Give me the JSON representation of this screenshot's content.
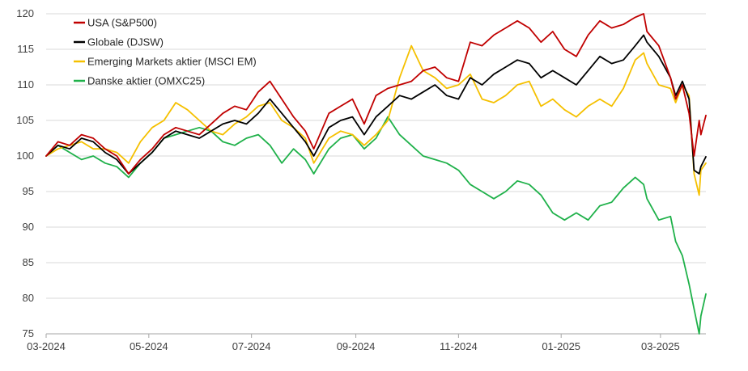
{
  "chart_data": {
    "type": "line",
    "title": "",
    "xlabel": "",
    "ylabel": "",
    "ylim": [
      75,
      120
    ],
    "yticks": [
      75,
      80,
      85,
      90,
      95,
      100,
      105,
      110,
      115,
      120
    ],
    "xticks": [
      {
        "label": "03-2024",
        "value": "2024-03-01"
      },
      {
        "label": "05-2024",
        "value": "2024-05-01"
      },
      {
        "label": "07-2024",
        "value": "2024-07-01"
      },
      {
        "label": "09-2024",
        "value": "2024-09-01"
      },
      {
        "label": "11-2024",
        "value": "2024-11-01"
      },
      {
        "label": "01-2025",
        "value": "2025-01-01"
      },
      {
        "label": "03-2025",
        "value": "2025-03-01"
      }
    ],
    "xrange": [
      "2024-03-01",
      "2025-03-28"
    ],
    "grid": "horizontal",
    "legend": "top-left",
    "series": [
      {
        "name": "USA (S&P500)",
        "color": "#c00000",
        "points": [
          [
            "2024-03-01",
            100.0
          ],
          [
            "2024-03-08",
            102.0
          ],
          [
            "2024-03-15",
            101.5
          ],
          [
            "2024-03-22",
            103.0
          ],
          [
            "2024-03-29",
            102.5
          ],
          [
            "2024-04-05",
            101.0
          ],
          [
            "2024-04-12",
            100.0
          ],
          [
            "2024-04-19",
            97.5
          ],
          [
            "2024-04-26",
            99.5
          ],
          [
            "2024-05-03",
            101.0
          ],
          [
            "2024-05-10",
            103.0
          ],
          [
            "2024-05-17",
            104.0
          ],
          [
            "2024-05-24",
            103.5
          ],
          [
            "2024-05-31",
            103.0
          ],
          [
            "2024-06-07",
            104.5
          ],
          [
            "2024-06-14",
            106.0
          ],
          [
            "2024-06-21",
            107.0
          ],
          [
            "2024-06-28",
            106.5
          ],
          [
            "2024-07-05",
            109.0
          ],
          [
            "2024-07-12",
            110.5
          ],
          [
            "2024-07-19",
            108.0
          ],
          [
            "2024-07-26",
            105.5
          ],
          [
            "2024-08-02",
            103.5
          ],
          [
            "2024-08-07",
            101.0
          ],
          [
            "2024-08-16",
            106.0
          ],
          [
            "2024-08-23",
            107.0
          ],
          [
            "2024-08-30",
            108.0
          ],
          [
            "2024-09-06",
            104.5
          ],
          [
            "2024-09-13",
            108.5
          ],
          [
            "2024-09-20",
            109.5
          ],
          [
            "2024-09-27",
            110.0
          ],
          [
            "2024-10-04",
            110.5
          ],
          [
            "2024-10-11",
            112.0
          ],
          [
            "2024-10-18",
            112.5
          ],
          [
            "2024-10-25",
            111.0
          ],
          [
            "2024-11-01",
            110.5
          ],
          [
            "2024-11-08",
            116.0
          ],
          [
            "2024-11-15",
            115.5
          ],
          [
            "2024-11-22",
            117.0
          ],
          [
            "2024-11-29",
            118.0
          ],
          [
            "2024-12-06",
            119.0
          ],
          [
            "2024-12-13",
            118.0
          ],
          [
            "2024-12-20",
            116.0
          ],
          [
            "2024-12-27",
            117.5
          ],
          [
            "2025-01-03",
            115.0
          ],
          [
            "2025-01-10",
            114.0
          ],
          [
            "2025-01-17",
            117.0
          ],
          [
            "2025-01-24",
            119.0
          ],
          [
            "2025-01-31",
            118.0
          ],
          [
            "2025-02-07",
            118.5
          ],
          [
            "2025-02-14",
            119.5
          ],
          [
            "2025-02-19",
            120.0
          ],
          [
            "2025-02-21",
            117.5
          ],
          [
            "2025-02-28",
            115.5
          ],
          [
            "2025-03-07",
            111.0
          ],
          [
            "2025-03-10",
            108.0
          ],
          [
            "2025-03-14",
            110.0
          ],
          [
            "2025-03-18",
            106.0
          ],
          [
            "2025-03-21",
            100.0
          ],
          [
            "2025-03-24",
            105.0
          ],
          [
            "2025-03-25",
            103.0
          ],
          [
            "2025-03-28",
            105.7
          ]
        ]
      },
      {
        "name": "Globale (DJSW)",
        "color": "#000000",
        "points": [
          [
            "2024-03-01",
            100.0
          ],
          [
            "2024-03-08",
            101.5
          ],
          [
            "2024-03-15",
            101.0
          ],
          [
            "2024-03-22",
            102.5
          ],
          [
            "2024-03-29",
            102.0
          ],
          [
            "2024-04-05",
            100.5
          ],
          [
            "2024-04-12",
            99.5
          ],
          [
            "2024-04-19",
            97.5
          ],
          [
            "2024-04-26",
            99.0
          ],
          [
            "2024-05-03",
            100.5
          ],
          [
            "2024-05-10",
            102.5
          ],
          [
            "2024-05-17",
            103.5
          ],
          [
            "2024-05-24",
            103.0
          ],
          [
            "2024-05-31",
            102.5
          ],
          [
            "2024-06-07",
            103.5
          ],
          [
            "2024-06-14",
            104.5
          ],
          [
            "2024-06-21",
            105.0
          ],
          [
            "2024-06-28",
            104.5
          ],
          [
            "2024-07-05",
            106.0
          ],
          [
            "2024-07-12",
            108.0
          ],
          [
            "2024-07-19",
            106.0
          ],
          [
            "2024-07-26",
            104.0
          ],
          [
            "2024-08-02",
            102.0
          ],
          [
            "2024-08-07",
            100.0
          ],
          [
            "2024-08-16",
            104.0
          ],
          [
            "2024-08-23",
            105.0
          ],
          [
            "2024-08-30",
            105.5
          ],
          [
            "2024-09-06",
            103.0
          ],
          [
            "2024-09-13",
            105.5
          ],
          [
            "2024-09-20",
            107.0
          ],
          [
            "2024-09-27",
            108.5
          ],
          [
            "2024-10-04",
            108.0
          ],
          [
            "2024-10-11",
            109.0
          ],
          [
            "2024-10-18",
            110.0
          ],
          [
            "2024-10-25",
            108.5
          ],
          [
            "2024-11-01",
            108.0
          ],
          [
            "2024-11-08",
            111.0
          ],
          [
            "2024-11-15",
            110.0
          ],
          [
            "2024-11-22",
            111.5
          ],
          [
            "2024-11-29",
            112.5
          ],
          [
            "2024-12-06",
            113.5
          ],
          [
            "2024-12-13",
            113.0
          ],
          [
            "2024-12-20",
            111.0
          ],
          [
            "2024-12-27",
            112.0
          ],
          [
            "2025-01-03",
            111.0
          ],
          [
            "2025-01-10",
            110.0
          ],
          [
            "2025-01-17",
            112.0
          ],
          [
            "2025-01-24",
            114.0
          ],
          [
            "2025-01-31",
            113.0
          ],
          [
            "2025-02-07",
            113.5
          ],
          [
            "2025-02-14",
            115.5
          ],
          [
            "2025-02-19",
            117.0
          ],
          [
            "2025-02-21",
            116.0
          ],
          [
            "2025-02-28",
            114.0
          ],
          [
            "2025-03-07",
            111.0
          ],
          [
            "2025-03-10",
            108.5
          ],
          [
            "2025-03-14",
            110.5
          ],
          [
            "2025-03-18",
            108.0
          ],
          [
            "2025-03-21",
            98.0
          ],
          [
            "2025-03-24",
            97.5
          ],
          [
            "2025-03-25",
            98.5
          ],
          [
            "2025-03-28",
            99.9
          ]
        ]
      },
      {
        "name": "Emerging Markets aktier (MSCI EM)",
        "color": "#f5c000",
        "points": [
          [
            "2024-03-01",
            100.0
          ],
          [
            "2024-03-08",
            101.0
          ],
          [
            "2024-03-15",
            101.5
          ],
          [
            "2024-03-22",
            102.0
          ],
          [
            "2024-03-29",
            101.0
          ],
          [
            "2024-04-05",
            101.0
          ],
          [
            "2024-04-12",
            100.5
          ],
          [
            "2024-04-19",
            99.0
          ],
          [
            "2024-04-26",
            102.0
          ],
          [
            "2024-05-03",
            104.0
          ],
          [
            "2024-05-10",
            105.0
          ],
          [
            "2024-05-17",
            107.5
          ],
          [
            "2024-05-24",
            106.5
          ],
          [
            "2024-05-31",
            105.0
          ],
          [
            "2024-06-07",
            103.5
          ],
          [
            "2024-06-14",
            103.0
          ],
          [
            "2024-06-21",
            104.5
          ],
          [
            "2024-06-28",
            105.5
          ],
          [
            "2024-07-05",
            107.0
          ],
          [
            "2024-07-12",
            107.5
          ],
          [
            "2024-07-19",
            105.0
          ],
          [
            "2024-07-26",
            104.0
          ],
          [
            "2024-08-02",
            102.5
          ],
          [
            "2024-08-07",
            99.0
          ],
          [
            "2024-08-16",
            102.5
          ],
          [
            "2024-08-23",
            103.5
          ],
          [
            "2024-08-30",
            103.0
          ],
          [
            "2024-09-06",
            101.5
          ],
          [
            "2024-09-13",
            103.0
          ],
          [
            "2024-09-20",
            105.0
          ],
          [
            "2024-09-27",
            111.0
          ],
          [
            "2024-10-04",
            115.5
          ],
          [
            "2024-10-11",
            112.0
          ],
          [
            "2024-10-18",
            111.0
          ],
          [
            "2024-10-25",
            109.5
          ],
          [
            "2024-11-01",
            110.0
          ],
          [
            "2024-11-08",
            111.5
          ],
          [
            "2024-11-15",
            108.0
          ],
          [
            "2024-11-22",
            107.5
          ],
          [
            "2024-11-29",
            108.5
          ],
          [
            "2024-12-06",
            110.0
          ],
          [
            "2024-12-13",
            110.5
          ],
          [
            "2024-12-20",
            107.0
          ],
          [
            "2024-12-27",
            108.0
          ],
          [
            "2025-01-03",
            106.5
          ],
          [
            "2025-01-10",
            105.5
          ],
          [
            "2025-01-17",
            107.0
          ],
          [
            "2025-01-24",
            108.0
          ],
          [
            "2025-01-31",
            107.0
          ],
          [
            "2025-02-07",
            109.5
          ],
          [
            "2025-02-14",
            113.5
          ],
          [
            "2025-02-19",
            114.5
          ],
          [
            "2025-02-21",
            113.0
          ],
          [
            "2025-02-28",
            110.0
          ],
          [
            "2025-03-07",
            109.5
          ],
          [
            "2025-03-10",
            107.5
          ],
          [
            "2025-03-14",
            110.0
          ],
          [
            "2025-03-18",
            108.5
          ],
          [
            "2025-03-21",
            97.5
          ],
          [
            "2025-03-24",
            94.5
          ],
          [
            "2025-03-25",
            98.0
          ],
          [
            "2025-03-28",
            99.0
          ]
        ]
      },
      {
        "name": "Danske aktier (OMXC25)",
        "color": "#1fb14a",
        "points": [
          [
            "2024-03-01",
            100.0
          ],
          [
            "2024-03-08",
            101.5
          ],
          [
            "2024-03-15",
            100.5
          ],
          [
            "2024-03-22",
            99.5
          ],
          [
            "2024-03-29",
            100.0
          ],
          [
            "2024-04-05",
            99.0
          ],
          [
            "2024-04-12",
            98.5
          ],
          [
            "2024-04-19",
            97.0
          ],
          [
            "2024-04-26",
            99.0
          ],
          [
            "2024-05-03",
            100.5
          ],
          [
            "2024-05-10",
            102.5
          ],
          [
            "2024-05-17",
            103.0
          ],
          [
            "2024-05-24",
            103.5
          ],
          [
            "2024-05-31",
            104.0
          ],
          [
            "2024-06-07",
            103.5
          ],
          [
            "2024-06-14",
            102.0
          ],
          [
            "2024-06-21",
            101.5
          ],
          [
            "2024-06-28",
            102.5
          ],
          [
            "2024-07-05",
            103.0
          ],
          [
            "2024-07-12",
            101.5
          ],
          [
            "2024-07-19",
            99.0
          ],
          [
            "2024-07-26",
            101.0
          ],
          [
            "2024-08-02",
            99.5
          ],
          [
            "2024-08-07",
            97.5
          ],
          [
            "2024-08-16",
            101.0
          ],
          [
            "2024-08-23",
            102.5
          ],
          [
            "2024-08-30",
            103.0
          ],
          [
            "2024-09-06",
            101.0
          ],
          [
            "2024-09-13",
            102.5
          ],
          [
            "2024-09-20",
            105.5
          ],
          [
            "2024-09-27",
            103.0
          ],
          [
            "2024-10-04",
            101.5
          ],
          [
            "2024-10-11",
            100.0
          ],
          [
            "2024-10-18",
            99.5
          ],
          [
            "2024-10-25",
            99.0
          ],
          [
            "2024-11-01",
            98.0
          ],
          [
            "2024-11-08",
            96.0
          ],
          [
            "2024-11-15",
            95.0
          ],
          [
            "2024-11-22",
            94.0
          ],
          [
            "2024-11-29",
            95.0
          ],
          [
            "2024-12-06",
            96.5
          ],
          [
            "2024-12-13",
            96.0
          ],
          [
            "2024-12-20",
            94.5
          ],
          [
            "2024-12-27",
            92.0
          ],
          [
            "2025-01-03",
            91.0
          ],
          [
            "2025-01-10",
            92.0
          ],
          [
            "2025-01-17",
            91.0
          ],
          [
            "2025-01-24",
            93.0
          ],
          [
            "2025-01-31",
            93.5
          ],
          [
            "2025-02-07",
            95.5
          ],
          [
            "2025-02-14",
            97.0
          ],
          [
            "2025-02-19",
            96.0
          ],
          [
            "2025-02-21",
            94.0
          ],
          [
            "2025-02-28",
            91.0
          ],
          [
            "2025-03-07",
            91.5
          ],
          [
            "2025-03-10",
            88.0
          ],
          [
            "2025-03-14",
            86.0
          ],
          [
            "2025-03-18",
            82.0
          ],
          [
            "2025-03-21",
            78.5
          ],
          [
            "2025-03-24",
            75.0
          ],
          [
            "2025-03-25",
            77.5
          ],
          [
            "2025-03-28",
            80.6
          ]
        ]
      }
    ]
  }
}
